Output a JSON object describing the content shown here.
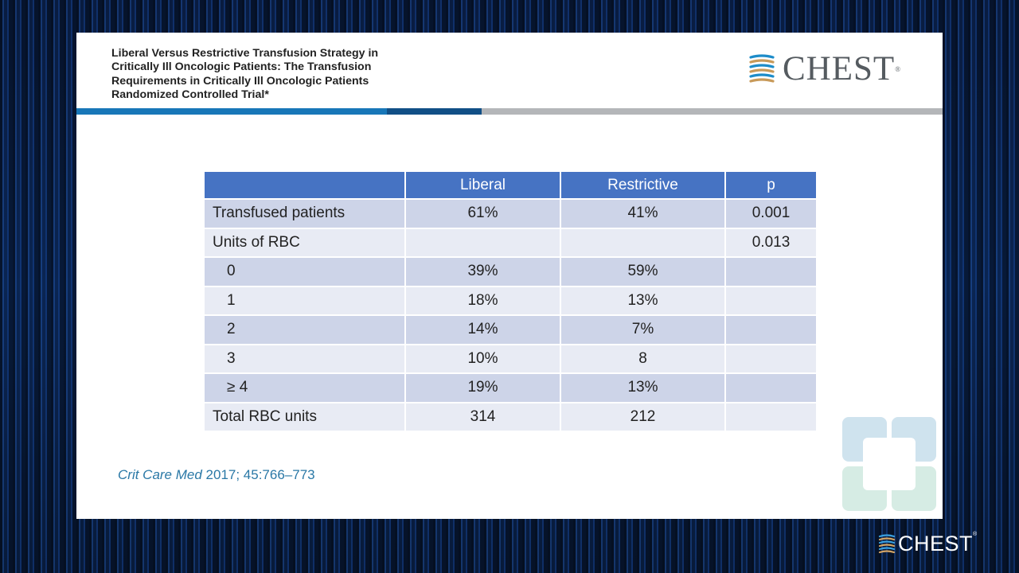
{
  "slide": {
    "title": "Liberal Versus Restrictive Transfusion Strategy in Critically Ill Oncologic Patients: The Transfusion Requirements in Critically Ill Oncologic Patients Randomized Controlled Trial*",
    "logo_text": "CHEST",
    "logo_mark": "®",
    "citation_journal": "Crit Care Med",
    "citation_rest": " 2017; 45:766–773"
  },
  "table": {
    "headers": [
      "",
      "Liberal",
      "Restrictive",
      "p"
    ],
    "rows": [
      [
        "Transfused patients",
        "61%",
        "41%",
        "0.001"
      ],
      [
        "Units of RBC",
        "",
        "",
        "0.013"
      ],
      [
        "0",
        "39%",
        "59%",
        ""
      ],
      [
        "1",
        "18%",
        "13%",
        ""
      ],
      [
        "2",
        "14%",
        "7%",
        ""
      ],
      [
        "3",
        "10%",
        "8",
        ""
      ],
      [
        "≥ 4",
        "19%",
        "13%",
        ""
      ],
      [
        "Total RBC units",
        "314",
        "212",
        ""
      ]
    ]
  },
  "footer": {
    "logo_text": "CHEST",
    "logo_mark": "®"
  },
  "colors": {
    "header_blue": "#4673c3",
    "row_dark": "#cdd4e8",
    "row_light": "#e8ebf4",
    "citation": "#2a78a6"
  },
  "icons": [
    "chest-logo-mark-icon",
    "cross-watermark-icon"
  ]
}
